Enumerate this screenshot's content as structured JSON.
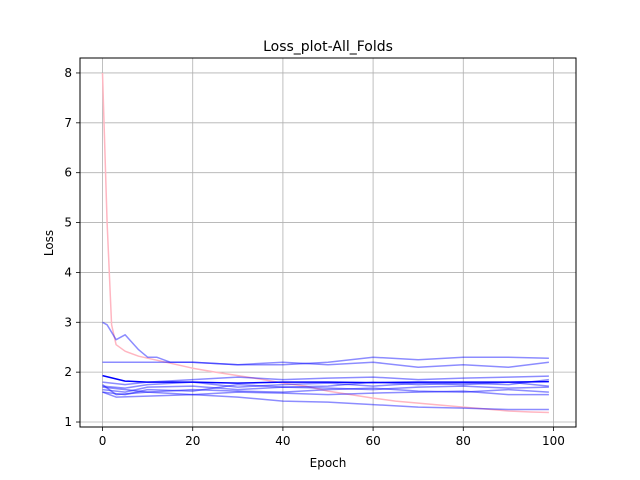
{
  "chart_data": {
    "type": "line",
    "title": "Loss_plot-All_Folds",
    "xlabel": "Epoch",
    "ylabel": "Loss",
    "xlim": [
      -5,
      105
    ],
    "ylim": [
      0.9,
      8.3
    ],
    "xticks": [
      0,
      20,
      40,
      60,
      80,
      100
    ],
    "yticks": [
      1,
      2,
      3,
      4,
      5,
      6,
      7,
      8
    ],
    "grid": true,
    "legend": "none",
    "colors": {
      "train": "#ffb6c1",
      "val": "#0000ff",
      "grid": "#b0b0b0"
    },
    "series": [
      {
        "role": "train",
        "x": [
          0,
          1,
          2,
          3,
          5,
          8,
          12,
          16,
          20,
          25,
          30,
          35,
          40,
          45,
          50,
          55,
          60,
          65,
          70,
          75,
          80,
          85,
          90,
          95,
          99
        ],
        "values": [
          8.0,
          5.0,
          2.95,
          2.55,
          2.42,
          2.32,
          2.24,
          2.16,
          2.08,
          2.0,
          1.93,
          1.86,
          1.78,
          1.72,
          1.62,
          1.55,
          1.48,
          1.42,
          1.38,
          1.34,
          1.3,
          1.26,
          1.22,
          1.2,
          1.19
        ]
      },
      {
        "role": "val",
        "alpha": 1.0,
        "x": [
          0,
          5,
          10,
          20,
          30,
          40,
          50,
          60,
          70,
          80,
          90,
          99
        ],
        "values": [
          1.93,
          1.82,
          1.8,
          1.8,
          1.78,
          1.8,
          1.8,
          1.79,
          1.8,
          1.8,
          1.8,
          1.81
        ]
      },
      {
        "role": "val",
        "alpha": 0.45,
        "x": [
          0,
          1,
          3,
          5,
          8,
          10,
          12,
          15,
          20,
          30,
          40,
          50,
          60,
          70,
          80,
          90,
          99
        ],
        "values": [
          3.0,
          2.95,
          2.65,
          2.75,
          2.45,
          2.3,
          2.3,
          2.2,
          2.2,
          2.15,
          2.2,
          2.15,
          2.2,
          2.1,
          2.15,
          2.1,
          2.2
        ]
      },
      {
        "role": "val",
        "alpha": 0.45,
        "x": [
          0,
          10,
          20,
          30,
          40,
          50,
          60,
          70,
          80,
          90,
          99
        ],
        "values": [
          2.2,
          2.2,
          2.2,
          2.15,
          2.15,
          2.2,
          2.3,
          2.25,
          2.3,
          2.3,
          2.28
        ]
      },
      {
        "role": "val",
        "alpha": 0.45,
        "x": [
          0,
          3,
          10,
          20,
          30,
          40,
          50,
          60,
          70,
          80,
          90,
          99
        ],
        "values": [
          1.75,
          1.55,
          1.6,
          1.55,
          1.5,
          1.42,
          1.4,
          1.35,
          1.3,
          1.28,
          1.25,
          1.25
        ]
      },
      {
        "role": "val",
        "alpha": 0.45,
        "x": [
          0,
          3,
          10,
          20,
          30,
          40,
          50,
          60,
          70,
          80,
          90,
          99
        ],
        "values": [
          1.6,
          1.5,
          1.52,
          1.55,
          1.6,
          1.58,
          1.55,
          1.58,
          1.6,
          1.62,
          1.55,
          1.55
        ]
      },
      {
        "role": "val",
        "alpha": 0.45,
        "x": [
          0,
          5,
          10,
          20,
          30,
          40,
          50,
          60,
          70,
          80,
          90,
          99
        ],
        "values": [
          1.65,
          1.6,
          1.7,
          1.72,
          1.65,
          1.7,
          1.68,
          1.65,
          1.7,
          1.72,
          1.68,
          1.7
        ]
      },
      {
        "role": "val",
        "alpha": 0.45,
        "x": [
          0,
          5,
          10,
          20,
          30,
          40,
          50,
          60,
          70,
          80,
          90,
          99
        ],
        "values": [
          1.72,
          1.68,
          1.75,
          1.8,
          1.7,
          1.75,
          1.78,
          1.72,
          1.78,
          1.75,
          1.8,
          1.72
        ]
      },
      {
        "role": "val",
        "alpha": 0.45,
        "x": [
          0,
          5,
          10,
          20,
          30,
          40,
          50,
          60,
          70,
          80,
          90,
          99
        ],
        "values": [
          1.6,
          1.55,
          1.65,
          1.62,
          1.75,
          1.7,
          1.72,
          1.8,
          1.75,
          1.78,
          1.75,
          1.85
        ]
      },
      {
        "role": "val",
        "alpha": 0.45,
        "x": [
          0,
          5,
          10,
          20,
          30,
          40,
          50,
          60,
          70,
          80,
          90,
          99
        ],
        "values": [
          1.7,
          1.65,
          1.6,
          1.65,
          1.62,
          1.6,
          1.65,
          1.68,
          1.62,
          1.6,
          1.65,
          1.6
        ]
      },
      {
        "role": "val",
        "alpha": 0.45,
        "x": [
          0,
          5,
          10,
          20,
          30,
          40,
          50,
          60,
          70,
          80,
          90,
          99
        ],
        "values": [
          1.8,
          1.75,
          1.8,
          1.85,
          1.9,
          1.85,
          1.88,
          1.9,
          1.85,
          1.88,
          1.9,
          1.92
        ]
      }
    ]
  }
}
